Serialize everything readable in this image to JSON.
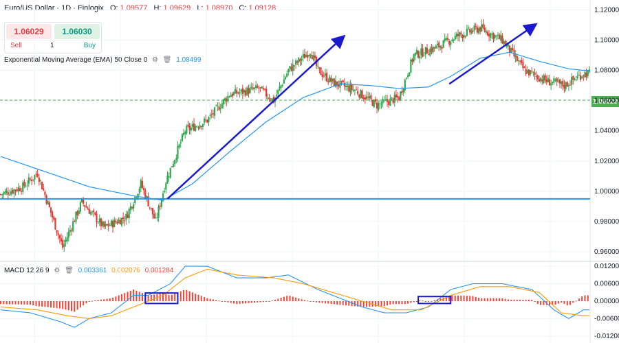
{
  "header": {
    "symbol": "Euro/US Dollar · 1D · Finlogix",
    "open_label": "O:",
    "open": "1.09577",
    "high_label": "H:",
    "high": "1.09629",
    "low_label": "L:",
    "low": "1.08970",
    "close_label": "C:",
    "close": "1.09128"
  },
  "trade": {
    "sell_price": "1.06029",
    "buy_price": "1.06030",
    "sell_label": "Sell",
    "buy_label": "Buy",
    "quantity": "1"
  },
  "ema": {
    "name": "Exponential Moving Average (EMA) 50 Close 0",
    "value": "1.08499",
    "color": "#2196f3"
  },
  "macd": {
    "name": "MACD 12 26 9",
    "macd_value": "0.003361",
    "signal_value": "0.002076",
    "hist_value": "0.001284",
    "macd_color": "#2196f3",
    "signal_color": "#ff9800",
    "hist_color": "#f44336"
  },
  "current_price_tag": "1.06029",
  "icons": [
    "settings-icon",
    "trash-icon"
  ],
  "chart_data": [
    {
      "type": "candlestick",
      "title": "Euro/US Dollar · 1D · Finlogix",
      "ylim": [
        0.955,
        1.122
      ],
      "y_ticks": [
        "1.12000",
        "1.10000",
        "1.08000",
        "1.06000",
        "1.04000",
        "1.02000",
        "1.00000",
        "0.98000",
        "0.96000"
      ],
      "y_tick_values": [
        1.12,
        1.1,
        1.08,
        1.06,
        1.04,
        1.02,
        1.0,
        0.98,
        0.96
      ],
      "horizontal_support": 0.995,
      "current_price_line": 1.0603,
      "ema_anchor": [
        [
          0,
          1.023
        ],
        [
          30,
          1.013
        ],
        [
          60,
          1.003
        ],
        [
          90,
          0.997
        ],
        [
          110,
          0.994
        ],
        [
          130,
          1.005
        ],
        [
          155,
          1.026
        ],
        [
          180,
          1.046
        ],
        [
          205,
          1.062
        ],
        [
          230,
          1.071
        ],
        [
          250,
          1.07
        ],
        [
          270,
          1.068
        ],
        [
          290,
          1.069
        ],
        [
          305,
          1.076
        ],
        [
          325,
          1.088
        ],
        [
          345,
          1.092
        ],
        [
          365,
          1.086
        ],
        [
          385,
          1.081
        ],
        [
          395,
          1.08
        ]
      ],
      "close_anchor": [
        [
          0,
          0.998
        ],
        [
          15,
          1.003
        ],
        [
          25,
          1.012
        ],
        [
          35,
          0.983
        ],
        [
          42,
          0.963
        ],
        [
          55,
          0.993
        ],
        [
          70,
          0.976
        ],
        [
          85,
          0.983
        ],
        [
          95,
          1.005
        ],
        [
          105,
          0.98
        ],
        [
          112,
          1.007
        ],
        [
          125,
          1.04
        ],
        [
          140,
          1.047
        ],
        [
          155,
          1.064
        ],
        [
          175,
          1.068
        ],
        [
          185,
          1.06
        ],
        [
          195,
          1.08
        ],
        [
          210,
          1.093
        ],
        [
          215,
          1.08
        ],
        [
          225,
          1.072
        ],
        [
          240,
          1.067
        ],
        [
          255,
          1.057
        ],
        [
          270,
          1.062
        ],
        [
          280,
          1.09
        ],
        [
          295,
          1.095
        ],
        [
          310,
          1.103
        ],
        [
          325,
          1.108
        ],
        [
          340,
          1.1
        ],
        [
          355,
          1.08
        ],
        [
          370,
          1.073
        ],
        [
          382,
          1.07
        ],
        [
          395,
          1.078
        ]
      ],
      "arrows": [
        {
          "from": [
            113,
            0.995
          ],
          "to": [
            232,
            1.102
          ]
        },
        {
          "from": [
            304,
            1.071
          ],
          "to": [
            362,
            1.11
          ]
        }
      ]
    },
    {
      "type": "macd",
      "title": "MACD 12 26 9",
      "ylim": [
        -0.0125,
        0.0125
      ],
      "y_ticks": [
        "0.012000",
        "0.006000",
        "0.000000",
        "-0.006000",
        "-0.012000"
      ],
      "y_tick_values": [
        0.012,
        0.006,
        0.0,
        -0.006,
        -0.012
      ],
      "macd_anchor": [
        [
          0,
          -0.003
        ],
        [
          20,
          -0.004
        ],
        [
          40,
          -0.007
        ],
        [
          50,
          -0.009
        ],
        [
          60,
          -0.006
        ],
        [
          75,
          -0.004
        ],
        [
          90,
          0.002
        ],
        [
          100,
          0.002
        ],
        [
          115,
          0.006
        ],
        [
          125,
          0.012
        ],
        [
          140,
          0.012
        ],
        [
          160,
          0.008
        ],
        [
          180,
          0.008
        ],
        [
          195,
          0.009
        ],
        [
          215,
          0.004
        ],
        [
          230,
          0.001
        ],
        [
          245,
          -0.002
        ],
        [
          260,
          -0.004
        ],
        [
          275,
          -0.004
        ],
        [
          290,
          -0.002
        ],
        [
          305,
          0.004
        ],
        [
          320,
          0.006
        ],
        [
          340,
          0.006
        ],
        [
          360,
          0.004
        ],
        [
          375,
          -0.003
        ],
        [
          385,
          -0.006
        ],
        [
          395,
          -0.003
        ]
      ],
      "signal_anchor": [
        [
          0,
          -0.002
        ],
        [
          25,
          -0.003
        ],
        [
          45,
          -0.005
        ],
        [
          60,
          -0.006
        ],
        [
          75,
          -0.005
        ],
        [
          95,
          -0.001
        ],
        [
          110,
          0.002
        ],
        [
          125,
          0.008
        ],
        [
          140,
          0.011
        ],
        [
          160,
          0.009
        ],
        [
          185,
          0.008
        ],
        [
          205,
          0.006
        ],
        [
          225,
          0.003
        ],
        [
          245,
          0.0
        ],
        [
          265,
          -0.003
        ],
        [
          285,
          -0.003
        ],
        [
          305,
          0.002
        ],
        [
          325,
          0.005
        ],
        [
          345,
          0.005
        ],
        [
          365,
          0.003
        ],
        [
          380,
          -0.004
        ],
        [
          395,
          -0.005
        ]
      ],
      "boxes": [
        {
          "x": [
            98,
            120
          ],
          "y": [
            -0.0008,
            0.0028
          ]
        },
        {
          "x": [
            283,
            305
          ],
          "y": [
            -0.0008,
            0.0016
          ]
        }
      ]
    }
  ]
}
